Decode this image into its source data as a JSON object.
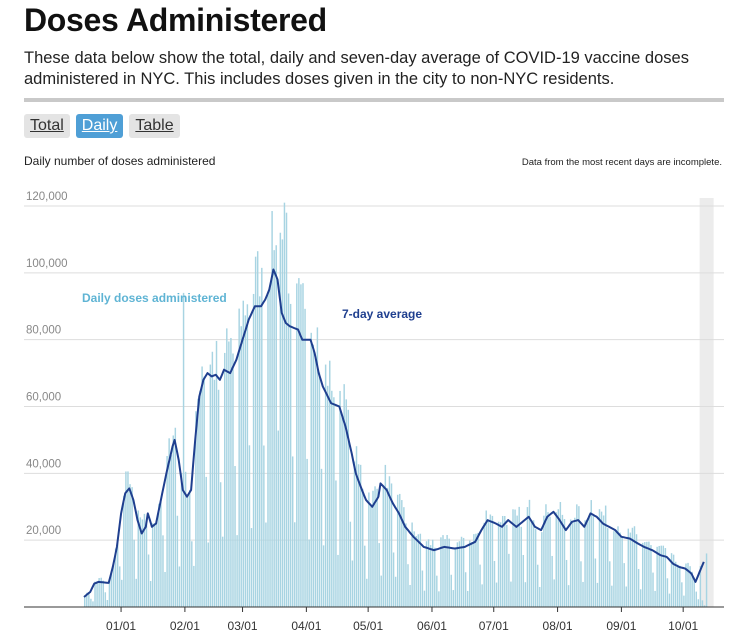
{
  "page": {
    "title": "Doses Administered",
    "description": "These data below show the total, daily and seven-day average of COVID-19 vaccine doses administered in NYC. This includes doses given in the city to non-NYC residents."
  },
  "tabs": [
    {
      "label": "Total",
      "active": false
    },
    {
      "label": "Daily",
      "active": true
    },
    {
      "label": "Table",
      "active": false
    }
  ],
  "chart_header": {
    "subtitle": "Daily number of doses administered",
    "note": "Data from the most recent days are incomplete."
  },
  "colors": {
    "bar": "#a8d4e2",
    "line": "#1f3f8f",
    "label_bars": "#5fb4d4",
    "incomplete_band": "#ececec",
    "grid": "#dddddd",
    "tick_text": "#888888"
  },
  "chart_data": {
    "type": "bar",
    "title": "Daily number of doses administered",
    "xlabel": "",
    "ylabel": "",
    "ylim": [
      0,
      120000
    ],
    "yticks": [
      20000,
      40000,
      60000,
      80000,
      100000,
      120000
    ],
    "ytick_labels": [
      "20,000",
      "40,000",
      "60,000",
      "80,000",
      "100,000",
      "120,000"
    ],
    "x_range_days": [
      0,
      305
    ],
    "xticks": [
      {
        "day": 18,
        "label": "01/01"
      },
      {
        "day": 49,
        "label": "02/01"
      },
      {
        "day": 77,
        "label": "03/01"
      },
      {
        "day": 108,
        "label": "04/01"
      },
      {
        "day": 138,
        "label": "05/01"
      },
      {
        "day": 169,
        "label": "06/01"
      },
      {
        "day": 199,
        "label": "07/01"
      },
      {
        "day": 230,
        "label": "08/01"
      },
      {
        "day": 261,
        "label": "09/01"
      },
      {
        "day": 291,
        "label": "10/01"
      }
    ],
    "incomplete_from_day": 299,
    "series_labels": {
      "bars": "Daily doses administered",
      "line": "7-day average"
    },
    "avg_keypoints": [
      [
        0,
        3000
      ],
      [
        3,
        4500
      ],
      [
        5,
        7000
      ],
      [
        7,
        7500
      ],
      [
        12,
        7200
      ],
      [
        14,
        12000
      ],
      [
        16,
        18000
      ],
      [
        18,
        28000
      ],
      [
        20,
        34000
      ],
      [
        22,
        35500
      ],
      [
        24,
        32000
      ],
      [
        26,
        26000
      ],
      [
        28,
        22000
      ],
      [
        30,
        24000
      ],
      [
        31,
        28000
      ],
      [
        33,
        24000
      ],
      [
        35,
        25000
      ],
      [
        38,
        34000
      ],
      [
        40,
        40000
      ],
      [
        43,
        48000
      ],
      [
        44,
        50000
      ],
      [
        46,
        44000
      ],
      [
        48,
        35000
      ],
      [
        50,
        33000
      ],
      [
        52,
        35000
      ],
      [
        54,
        50000
      ],
      [
        56,
        63000
      ],
      [
        58,
        68000
      ],
      [
        60,
        70000
      ],
      [
        62,
        69000
      ],
      [
        64,
        69500
      ],
      [
        66,
        68000
      ],
      [
        68,
        71000
      ],
      [
        71,
        70000
      ],
      [
        74,
        74000
      ],
      [
        77,
        80000
      ],
      [
        80,
        86000
      ],
      [
        83,
        90000
      ],
      [
        86,
        90000
      ],
      [
        88,
        92000
      ],
      [
        90,
        95000
      ],
      [
        92,
        101000
      ],
      [
        94,
        98000
      ],
      [
        96,
        88000
      ],
      [
        98,
        85000
      ],
      [
        100,
        84000
      ],
      [
        104,
        83000
      ],
      [
        106,
        80000
      ],
      [
        110,
        80000
      ],
      [
        112,
        76000
      ],
      [
        114,
        70000
      ],
      [
        116,
        66000
      ],
      [
        120,
        61000
      ],
      [
        124,
        60000
      ],
      [
        127,
        54000
      ],
      [
        130,
        46000
      ],
      [
        132,
        40000
      ],
      [
        135,
        35000
      ],
      [
        137,
        32000
      ],
      [
        140,
        30000
      ],
      [
        143,
        33000
      ],
      [
        144,
        37000
      ],
      [
        147,
        35000
      ],
      [
        150,
        31000
      ],
      [
        153,
        28000
      ],
      [
        156,
        24000
      ],
      [
        160,
        21000
      ],
      [
        165,
        18000
      ],
      [
        170,
        17000
      ],
      [
        175,
        18000
      ],
      [
        180,
        17500
      ],
      [
        185,
        18000
      ],
      [
        190,
        19500
      ],
      [
        193,
        23000
      ],
      [
        196,
        26000
      ],
      [
        200,
        25000
      ],
      [
        203,
        24000
      ],
      [
        206,
        26000
      ],
      [
        208,
        25000
      ],
      [
        210,
        24000
      ],
      [
        213,
        25500
      ],
      [
        216,
        27000
      ],
      [
        219,
        24000
      ],
      [
        222,
        23000
      ],
      [
        225,
        27000
      ],
      [
        228,
        28500
      ],
      [
        231,
        26000
      ],
      [
        234,
        23000
      ],
      [
        237,
        25500
      ],
      [
        240,
        26000
      ],
      [
        243,
        24000
      ],
      [
        246,
        28000
      ],
      [
        249,
        27000
      ],
      [
        252,
        25000
      ],
      [
        255,
        24000
      ],
      [
        258,
        23000
      ],
      [
        261,
        21000
      ],
      [
        265,
        20500
      ],
      [
        269,
        19000
      ],
      [
        272,
        18000
      ],
      [
        276,
        17000
      ],
      [
        280,
        15500
      ],
      [
        283,
        15000
      ],
      [
        286,
        13000
      ],
      [
        289,
        12000
      ],
      [
        292,
        11500
      ],
      [
        295,
        10000
      ],
      [
        297,
        7500
      ],
      [
        301,
        13500
      ]
    ],
    "weekly_pattern": [
      1.1,
      1.12,
      1.06,
      0.58,
      0.28,
      1.08,
      1.1
    ],
    "bar_overrides": [
      [
        48,
        94000
      ],
      [
        63,
        68000
      ],
      [
        65,
        65000
      ],
      [
        97,
        121000
      ],
      [
        98,
        118000
      ],
      [
        96,
        110000
      ],
      [
        95,
        112000
      ],
      [
        300,
        2000
      ],
      [
        301,
        500
      ]
    ]
  }
}
